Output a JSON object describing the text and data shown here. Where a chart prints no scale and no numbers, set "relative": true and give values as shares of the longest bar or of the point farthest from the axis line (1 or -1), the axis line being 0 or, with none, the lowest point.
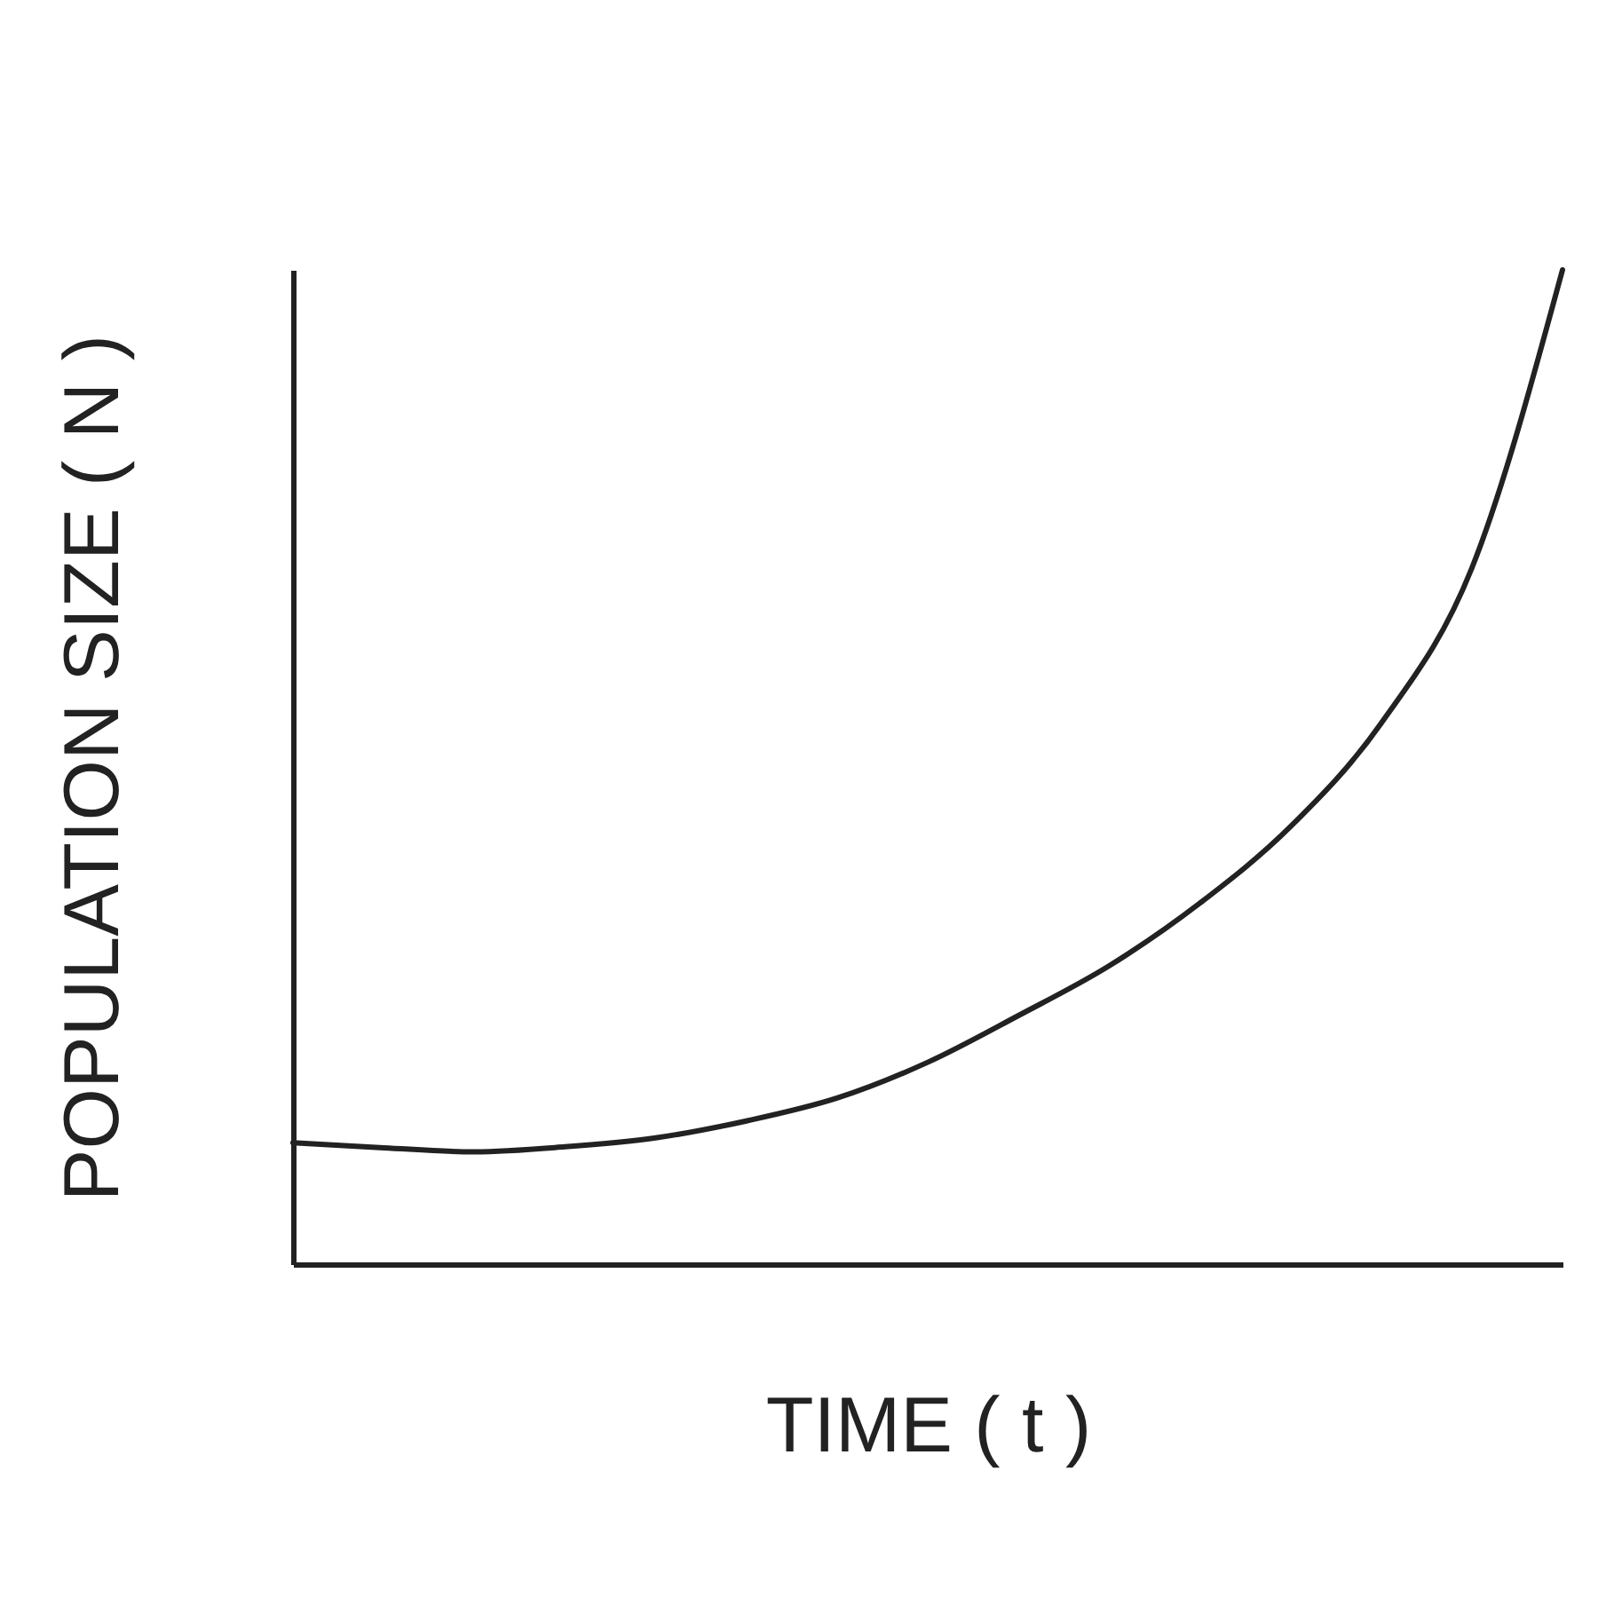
{
  "chart_data": {
    "type": "line",
    "xlabel": "TIME ( t )",
    "ylabel": "POPULATION SIZE ( N )",
    "relative": true,
    "categories": [
      null,
      null,
      null,
      null,
      null,
      null,
      null,
      null,
      null,
      null,
      null,
      null,
      null,
      null,
      null
    ],
    "series": [
      {
        "color": "#222222",
        "values": [
          0.122,
          0.117,
          0.113,
          0.118,
          0.127,
          0.144,
          0.167,
          0.203,
          0.25,
          0.3,
          0.363,
          0.44,
          0.544,
          0.7,
          1
        ]
      }
    ],
    "grid": false,
    "marker": "none",
    "line_style": "solid"
  }
}
